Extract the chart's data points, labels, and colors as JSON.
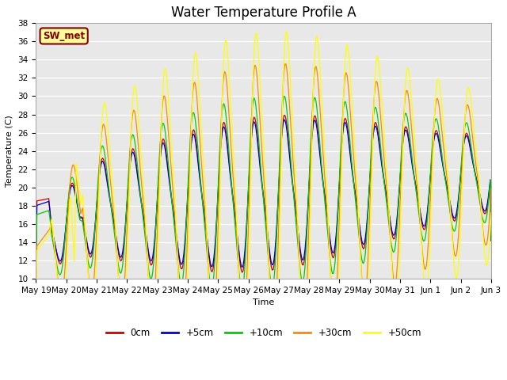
{
  "title": "Water Temperature Profile A",
  "xlabel": "Time",
  "ylabel": "Temperature (C)",
  "ylim": [
    10,
    38
  ],
  "yticks": [
    10,
    12,
    14,
    16,
    18,
    20,
    22,
    24,
    26,
    28,
    30,
    32,
    34,
    36,
    38
  ],
  "series_colors": [
    "#cc0000",
    "#0000cc",
    "#00cc00",
    "#ff8800",
    "#ffff00"
  ],
  "series_labels": [
    "0cm",
    "+5cm",
    "+10cm",
    "+30cm",
    "+50cm"
  ],
  "annotation_text": "SW_met",
  "annotation_color": "#800000",
  "annotation_bg": "#ffff99",
  "plot_bg": "#e8e8e8",
  "n_points": 500,
  "xtick_labels": [
    "May 19",
    "May 20",
    "May 21",
    "May 22",
    "May 23",
    "May 24",
    "May 25",
    "May 26",
    "May 27",
    "May 28",
    "May 29",
    "May 30",
    "May 31",
    "Jun 1",
    "Jun 2",
    "Jun 3"
  ],
  "title_fontsize": 12,
  "axis_fontsize": 8,
  "tick_fontsize": 7.5
}
